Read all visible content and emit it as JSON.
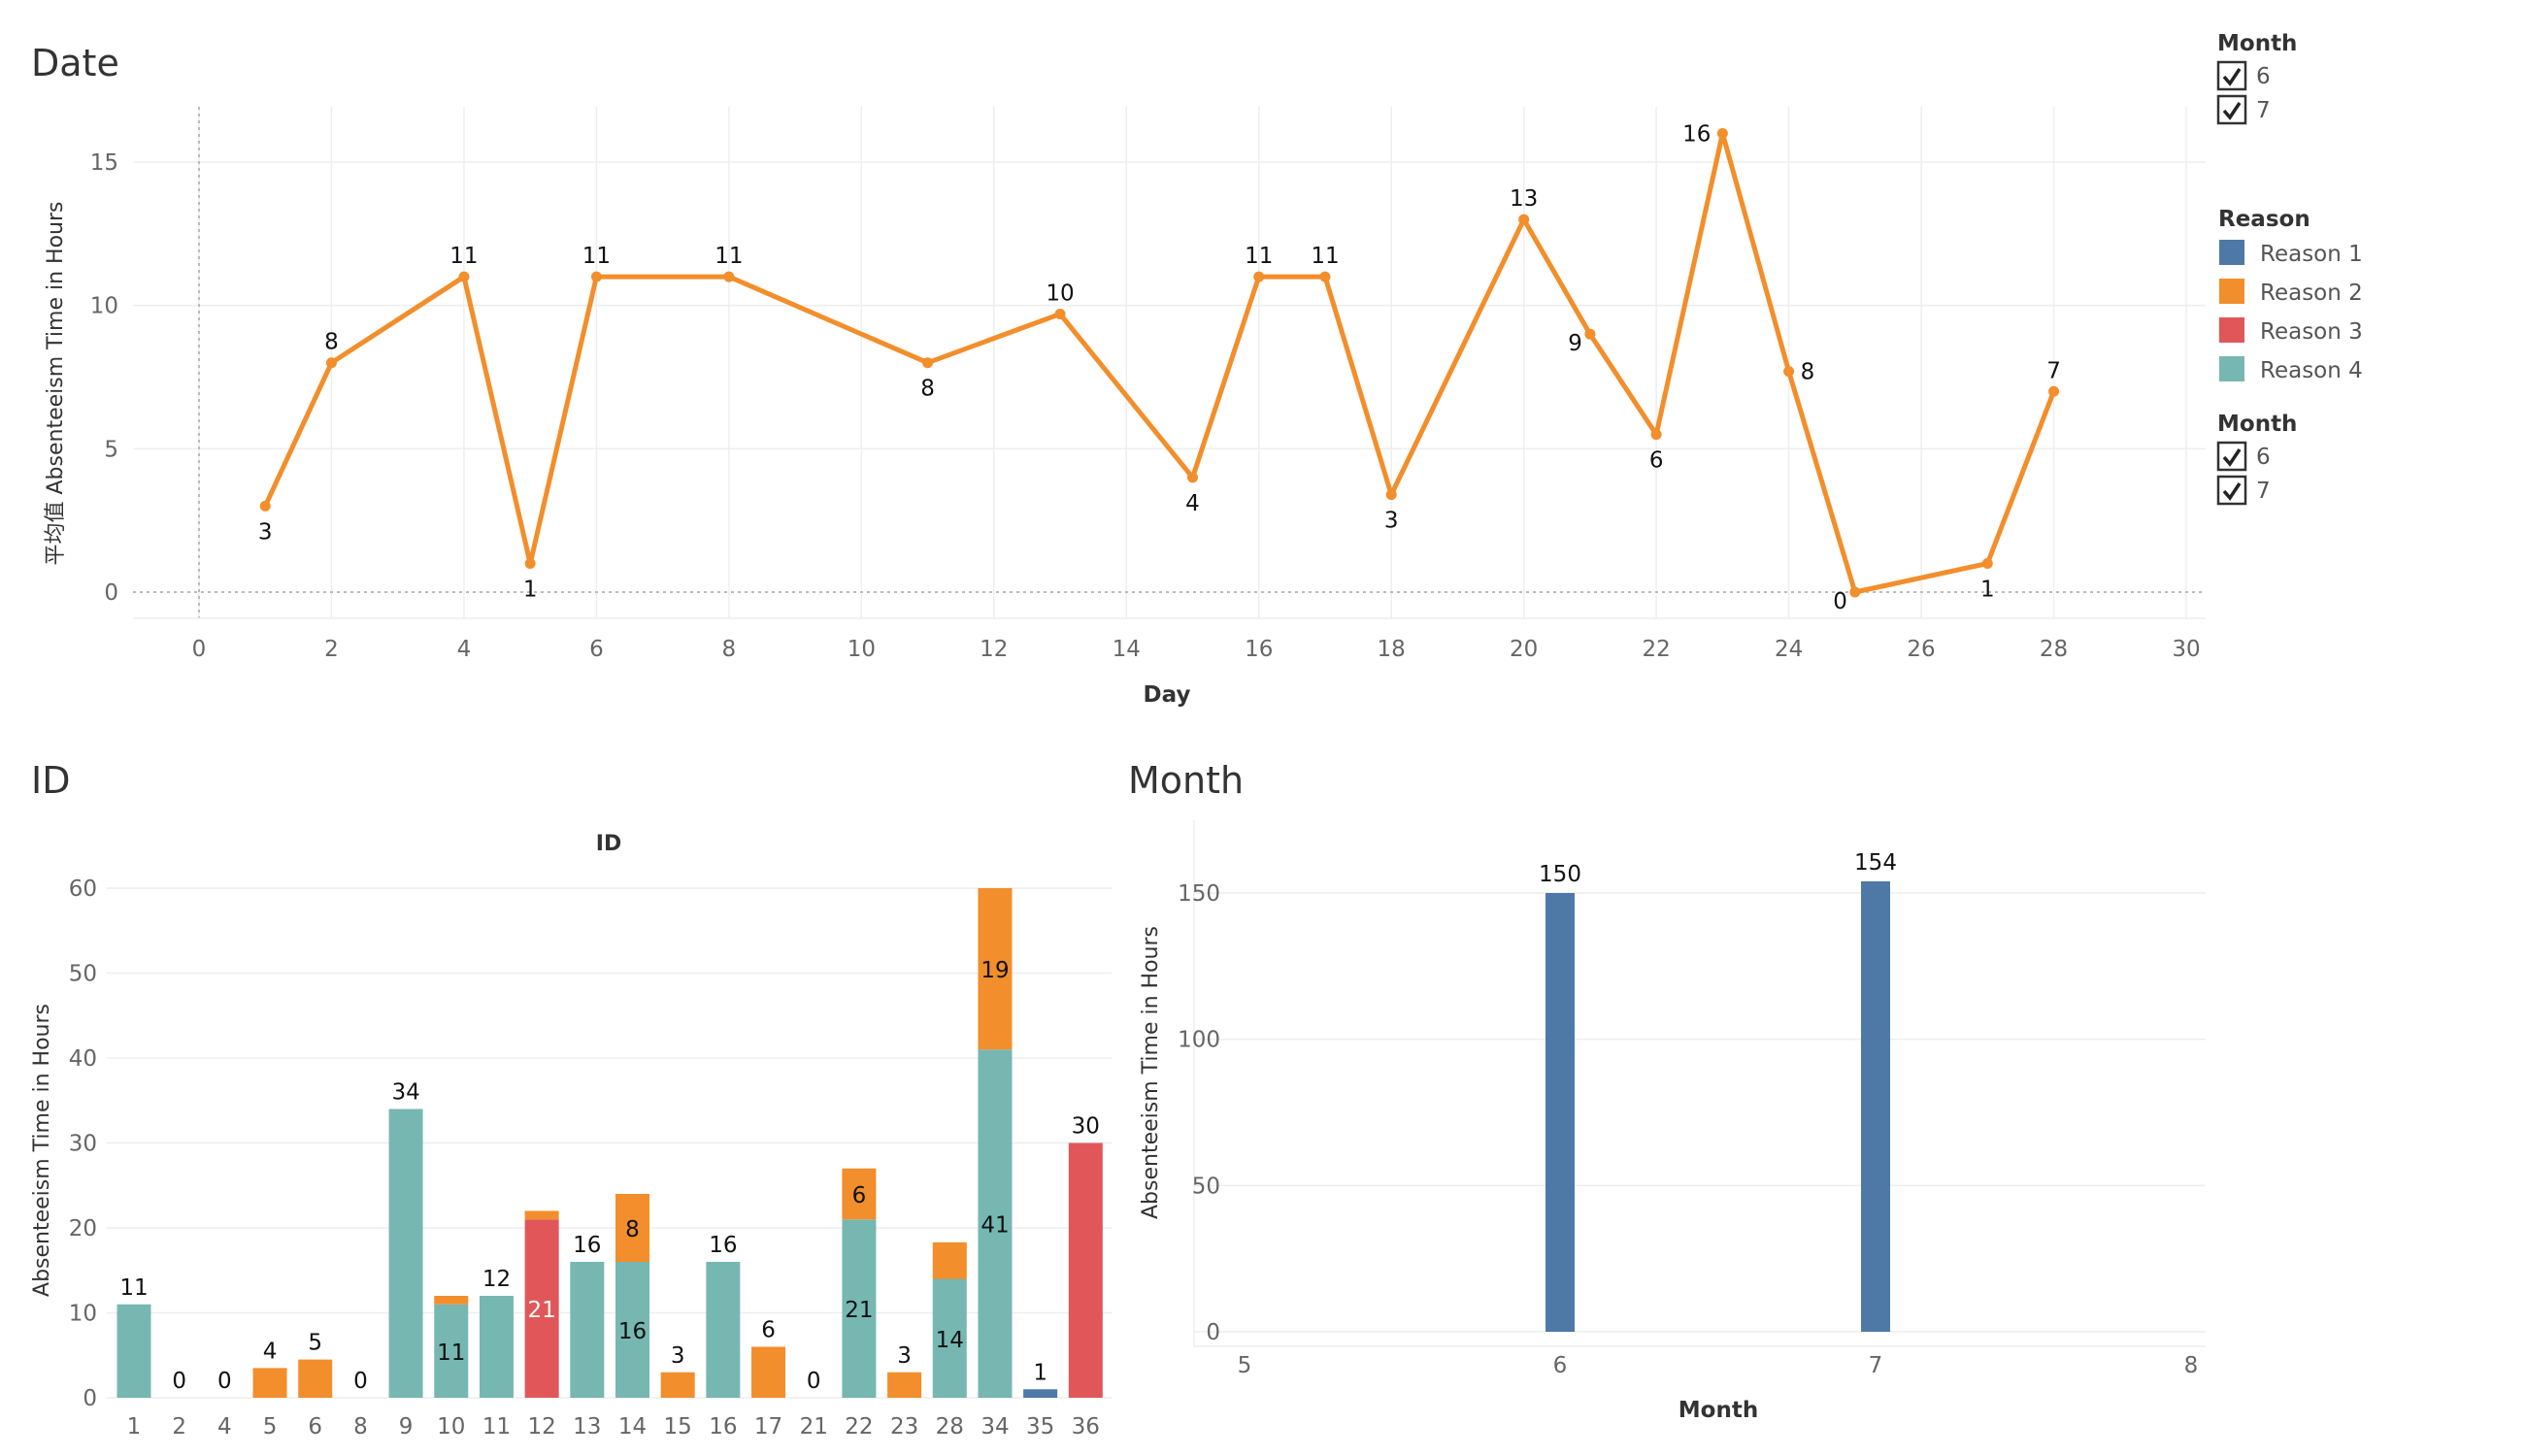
{
  "colors": {
    "reason1": "#4E79A7",
    "reason2": "#F28E2B",
    "reason3": "#E15759",
    "reason4": "#76B7B2",
    "grid": "#eeeeee",
    "zero": "#bbbbbb"
  },
  "legends": {
    "month_filter_1": {
      "title": "Month",
      "items": [
        "6",
        "7"
      ]
    },
    "reason": {
      "title": "Reason",
      "items": [
        "Reason 1",
        "Reason 2",
        "Reason 3",
        "Reason 4"
      ]
    },
    "month_filter_2": {
      "title": "Month",
      "items": [
        "6",
        "7"
      ]
    }
  },
  "chart_data": [
    {
      "type": "line",
      "title": "Date",
      "xlabel": "Day",
      "ylabel": "平均值 Absenteeism Time in Hours",
      "xlim": [
        -1,
        30
      ],
      "ylim": [
        -0.8,
        17
      ],
      "xticks": [
        0,
        2,
        4,
        6,
        8,
        10,
        12,
        14,
        16,
        18,
        20,
        22,
        24,
        26,
        28,
        30
      ],
      "yticks": [
        0,
        5,
        10,
        15
      ],
      "series": [
        {
          "name": "平均值 Absenteeism Time in Hours",
          "points": [
            {
              "x": 1,
              "y": 3,
              "label": "3",
              "pos": "below"
            },
            {
              "x": 2,
              "y": 8,
              "label": "8",
              "pos": "above"
            },
            {
              "x": 4,
              "y": 11,
              "label": "11",
              "pos": "above"
            },
            {
              "x": 5,
              "y": 1,
              "label": "1",
              "pos": "below"
            },
            {
              "x": 6,
              "y": 11,
              "label": "11",
              "pos": "above"
            },
            {
              "x": 8,
              "y": 11,
              "label": "11",
              "pos": "above"
            },
            {
              "x": 11,
              "y": 8,
              "label": "8",
              "pos": "below"
            },
            {
              "x": 13,
              "y": 9.7,
              "label": "10",
              "pos": "above"
            },
            {
              "x": 15,
              "y": 4,
              "label": "4",
              "pos": "below"
            },
            {
              "x": 16,
              "y": 11,
              "label": "11",
              "pos": "above"
            },
            {
              "x": 17,
              "y": 11,
              "label": "11",
              "pos": "above"
            },
            {
              "x": 18,
              "y": 3.4,
              "label": "3",
              "pos": "below"
            },
            {
              "x": 20,
              "y": 13,
              "label": "13",
              "pos": "above"
            },
            {
              "x": 21,
              "y": 9,
              "label": "9",
              "pos": "below-left"
            },
            {
              "x": 22,
              "y": 5.5,
              "label": "6",
              "pos": "below"
            },
            {
              "x": 23,
              "y": 16,
              "label": "16",
              "pos": "left"
            },
            {
              "x": 24,
              "y": 7.7,
              "label": "8",
              "pos": "right"
            },
            {
              "x": 25,
              "y": 0,
              "label": "0",
              "pos": "below-left"
            },
            {
              "x": 27,
              "y": 1,
              "label": "1",
              "pos": "below"
            },
            {
              "x": 28,
              "y": 7,
              "label": "7",
              "pos": "above"
            }
          ]
        }
      ]
    },
    {
      "type": "bar",
      "stacked": true,
      "title": "ID",
      "subtitle": "ID",
      "xlabel": "",
      "ylabel": "Absenteeism Time in Hours",
      "ylim": [
        0,
        60
      ],
      "yticks": [
        0,
        10,
        20,
        30,
        40,
        50,
        60
      ],
      "categories": [
        "1",
        "2",
        "4",
        "5",
        "6",
        "8",
        "9",
        "10",
        "11",
        "12",
        "13",
        "14",
        "15",
        "16",
        "17",
        "21",
        "22",
        "23",
        "28",
        "34",
        "35",
        "36"
      ],
      "series": [
        {
          "name": "Reason 4",
          "color_key": "reason4",
          "values": [
            11,
            0,
            0,
            0,
            0,
            0,
            34,
            11,
            12,
            0,
            16,
            16,
            0,
            16,
            0,
            0,
            21,
            0,
            14,
            41,
            0,
            0
          ]
        },
        {
          "name": "Reason 3",
          "color_key": "reason3",
          "values": [
            0,
            0,
            0,
            0,
            0,
            0,
            0,
            0,
            0,
            21,
            0,
            0,
            0,
            0,
            0,
            0,
            0,
            0,
            0,
            0,
            0,
            30
          ]
        },
        {
          "name": "Reason 2",
          "color_key": "reason2",
          "values": [
            0,
            0,
            0,
            3.5,
            4.5,
            0,
            0,
            1,
            0,
            1,
            0,
            8,
            3,
            0,
            6,
            0,
            6,
            3,
            4.3,
            19,
            0,
            0
          ]
        },
        {
          "name": "Reason 1",
          "color_key": "reason1",
          "values": [
            0,
            0,
            0,
            0,
            0,
            0,
            0,
            0,
            0,
            0,
            0,
            0,
            0,
            0,
            0,
            0,
            0,
            0,
            0,
            0,
            1,
            0
          ]
        }
      ],
      "totals": [
        "11",
        "0",
        "0",
        "4",
        "5",
        "0",
        "34",
        "",
        "12",
        "",
        "16",
        "",
        "3",
        "16",
        "6",
        "0",
        "",
        "3",
        "",
        "",
        "1",
        "30"
      ],
      "segment_labels": [
        {
          "category": "10",
          "series": "Reason 4",
          "text": "11"
        },
        {
          "category": "12",
          "series": "Reason 3",
          "text": "21",
          "light": true
        },
        {
          "category": "14",
          "series": "Reason 4",
          "text": "16"
        },
        {
          "category": "14",
          "series": "Reason 2",
          "text": "8"
        },
        {
          "category": "22",
          "series": "Reason 4",
          "text": "21"
        },
        {
          "category": "22",
          "series": "Reason 2",
          "text": "6"
        },
        {
          "category": "28",
          "series": "Reason 4",
          "text": "14"
        },
        {
          "category": "34",
          "series": "Reason 4",
          "text": "41"
        },
        {
          "category": "34",
          "series": "Reason 2",
          "text": "19"
        }
      ]
    },
    {
      "type": "bar",
      "title": "Month",
      "xlabel": "Month",
      "ylabel": "Absenteeism Time in Hours",
      "xlim": [
        5,
        8
      ],
      "ylim": [
        -5,
        170
      ],
      "xticks": [
        5,
        6,
        7,
        8
      ],
      "yticks": [
        0,
        50,
        100,
        150
      ],
      "series": [
        {
          "name": "Reason 1",
          "color_key": "reason1",
          "points": [
            {
              "x": 6,
              "y": 150,
              "label": "150"
            },
            {
              "x": 7,
              "y": 154,
              "label": "154"
            }
          ]
        }
      ]
    }
  ]
}
